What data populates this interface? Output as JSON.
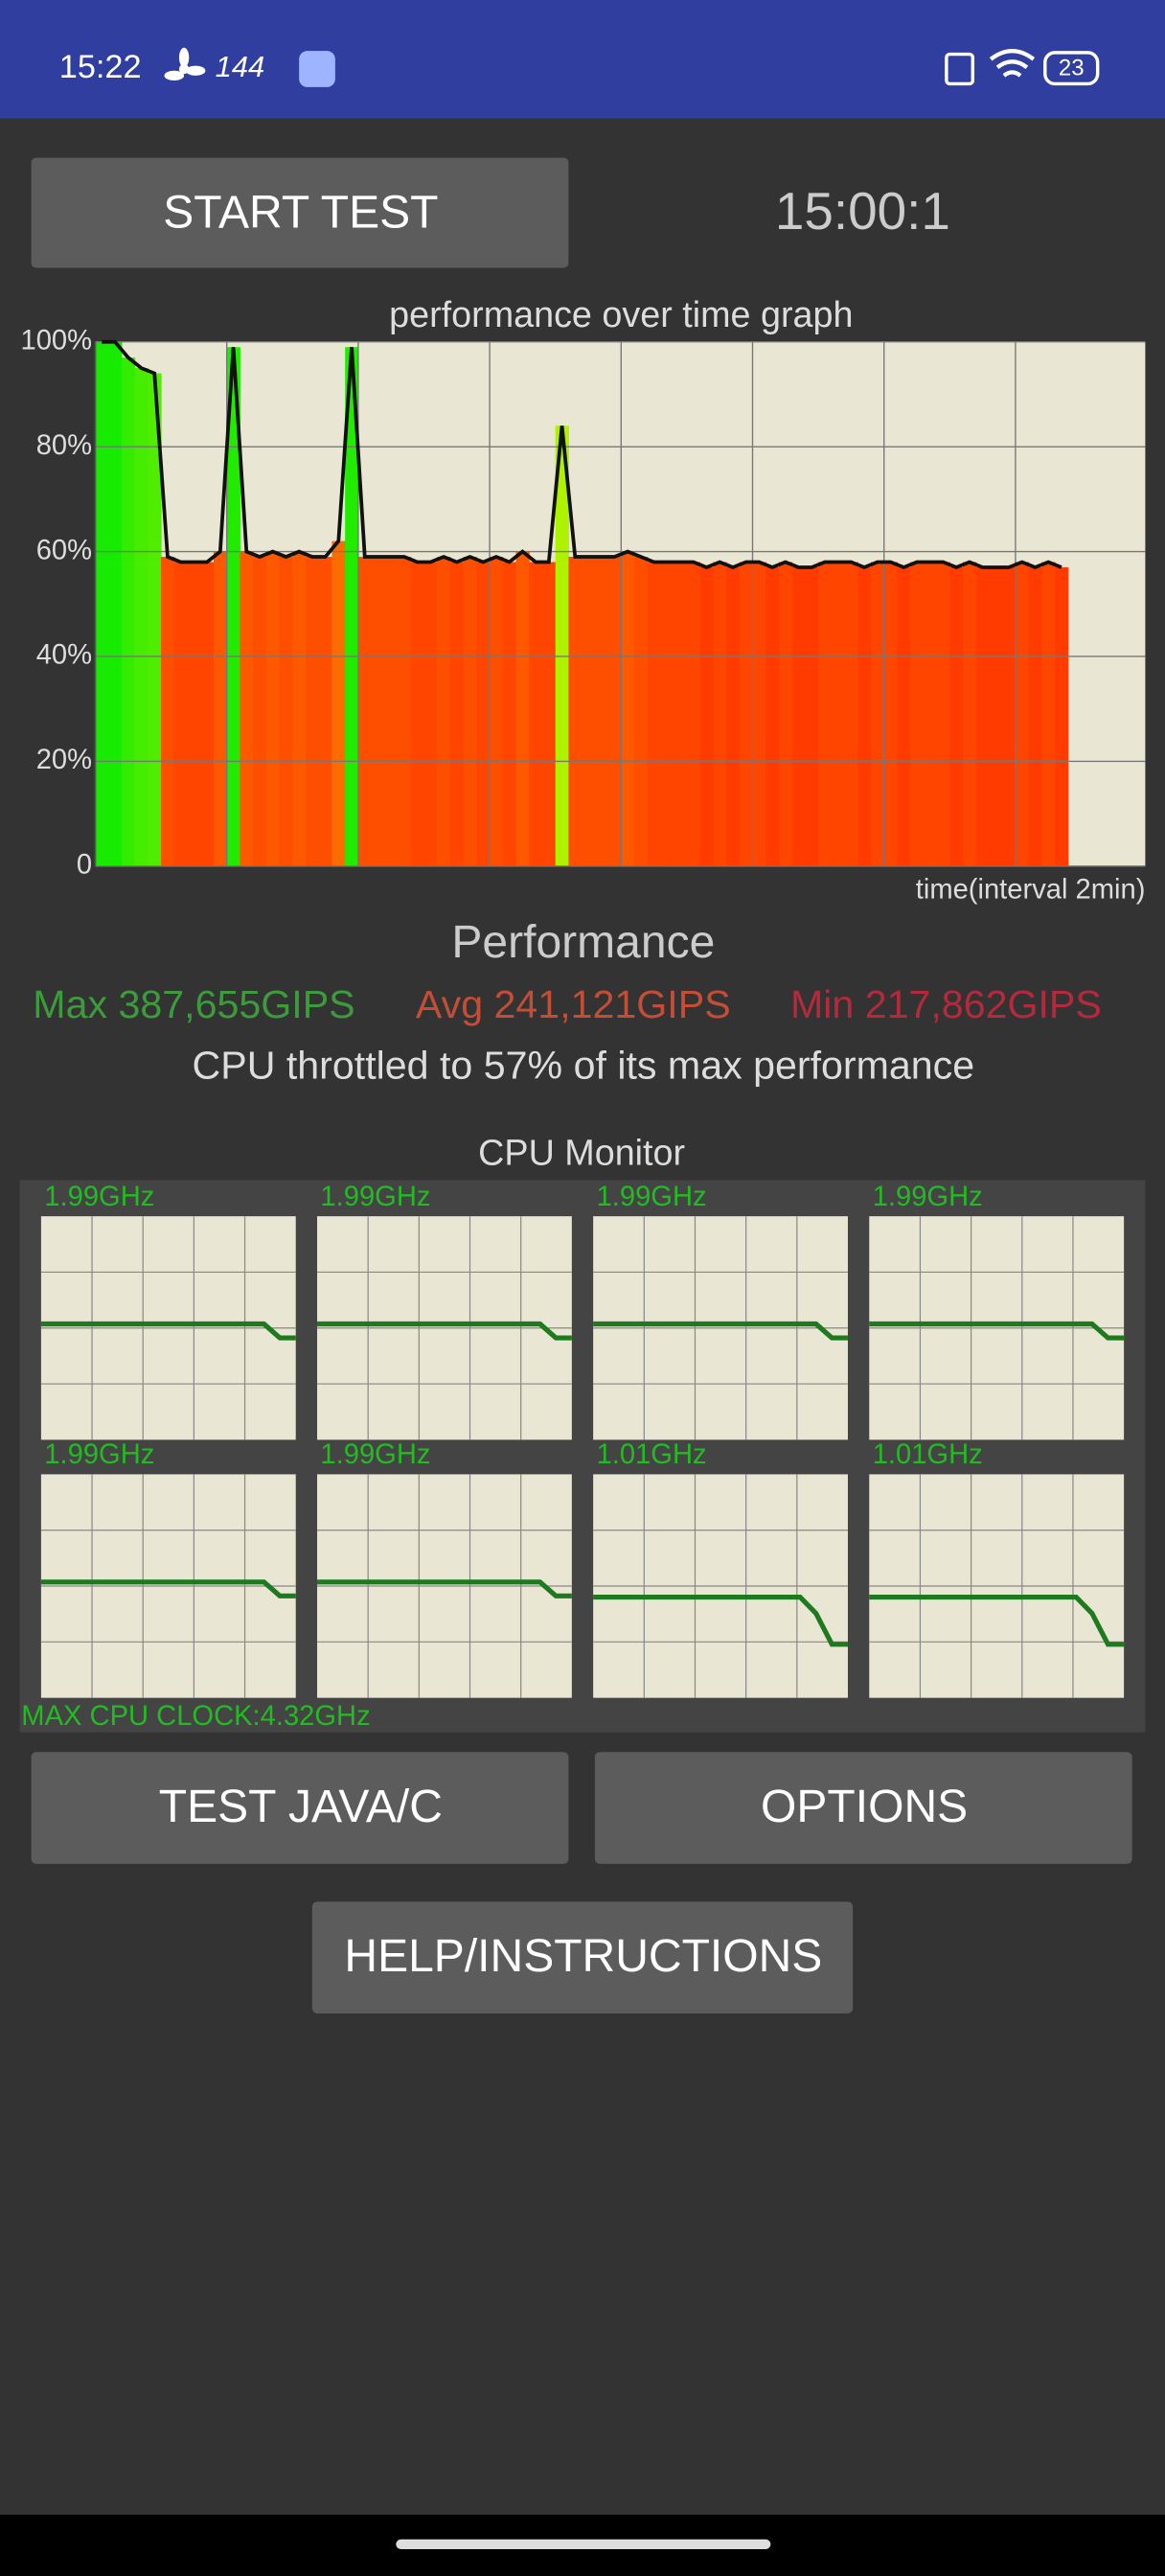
{
  "status_bar": {
    "time": "15:22",
    "refresh_rate": "144",
    "battery": "23"
  },
  "controls": {
    "start_button": "START TEST",
    "timer": "15:00:1"
  },
  "performance_graph": {
    "title": "performance over time graph",
    "x_label": "time(interval 2min)",
    "ylim": [
      0,
      100
    ],
    "yticks": [
      {
        "value": 0,
        "label": "0"
      },
      {
        "value": 20,
        "label": "20%"
      },
      {
        "value": 40,
        "label": "40%"
      },
      {
        "value": 60,
        "label": "60%"
      },
      {
        "value": 80,
        "label": "80%"
      },
      {
        "value": 100,
        "label": "100%"
      }
    ],
    "values": [
      100,
      100,
      97,
      95,
      94,
      59,
      58,
      58,
      58,
      60,
      99,
      60,
      59,
      60,
      59,
      60,
      59,
      59,
      62,
      99,
      59,
      59,
      59,
      59,
      58,
      58,
      59,
      58,
      59,
      58,
      59,
      58,
      60,
      58,
      58,
      84,
      59,
      59,
      59,
      59,
      60,
      59,
      58,
      58,
      58,
      58,
      57,
      58,
      57,
      58,
      58,
      57,
      58,
      57,
      57,
      58,
      58,
      58,
      57,
      58,
      58,
      57,
      58,
      58,
      58,
      57,
      58,
      57,
      57,
      57,
      58,
      57,
      58,
      57
    ]
  },
  "performance": {
    "heading": "Performance",
    "max": "Max 387,655GIPS",
    "avg": "Avg 241,121GIPS",
    "min": "Min 217,862GIPS",
    "throttle": "CPU throttled to 57% of its max performance"
  },
  "cpu_monitor": {
    "title": "CPU Monitor",
    "ylim": [
      0,
      3.84
    ],
    "cores": [
      {
        "label": "1.99GHz",
        "values": [
          1.99,
          1.99,
          1.99,
          1.99,
          1.99,
          1.99,
          1.99,
          1.99,
          1.99,
          1.99,
          1.99,
          1.99,
          1.99,
          1.99,
          1.99,
          1.75,
          1.75
        ]
      },
      {
        "label": "1.99GHz",
        "values": [
          1.99,
          1.99,
          1.99,
          1.99,
          1.99,
          1.99,
          1.99,
          1.99,
          1.99,
          1.99,
          1.99,
          1.99,
          1.99,
          1.99,
          1.99,
          1.75,
          1.75
        ]
      },
      {
        "label": "1.99GHz",
        "values": [
          1.99,
          1.99,
          1.99,
          1.99,
          1.99,
          1.99,
          1.99,
          1.99,
          1.99,
          1.99,
          1.99,
          1.99,
          1.99,
          1.99,
          1.99,
          1.75,
          1.75
        ]
      },
      {
        "label": "1.99GHz",
        "values": [
          1.99,
          1.99,
          1.99,
          1.99,
          1.99,
          1.99,
          1.99,
          1.99,
          1.99,
          1.99,
          1.99,
          1.99,
          1.99,
          1.99,
          1.99,
          1.75,
          1.75
        ]
      },
      {
        "label": "1.99GHz",
        "values": [
          1.99,
          1.99,
          1.99,
          1.99,
          1.99,
          1.99,
          1.99,
          1.99,
          1.99,
          1.99,
          1.99,
          1.99,
          1.99,
          1.99,
          1.99,
          1.75,
          1.75
        ]
      },
      {
        "label": "1.99GHz",
        "values": [
          1.99,
          1.99,
          1.99,
          1.99,
          1.99,
          1.99,
          1.99,
          1.99,
          1.99,
          1.99,
          1.99,
          1.99,
          1.99,
          1.99,
          1.99,
          1.75,
          1.75
        ]
      },
      {
        "label": "1.01GHz",
        "values": [
          1.73,
          1.73,
          1.73,
          1.73,
          1.73,
          1.73,
          1.73,
          1.73,
          1.73,
          1.73,
          1.73,
          1.73,
          1.73,
          1.73,
          1.45,
          0.92,
          0.92
        ]
      },
      {
        "label": "1.01GHz",
        "values": [
          1.73,
          1.73,
          1.73,
          1.73,
          1.73,
          1.73,
          1.73,
          1.73,
          1.73,
          1.73,
          1.73,
          1.73,
          1.73,
          1.73,
          1.45,
          0.92,
          0.92
        ]
      }
    ],
    "max_clock": "MAX CPU CLOCK:4.32GHz"
  },
  "buttons": {
    "test": "TEST JAVA/C",
    "options": "OPTIONS",
    "help": "HELP/INSTRUCTIONS"
  }
}
